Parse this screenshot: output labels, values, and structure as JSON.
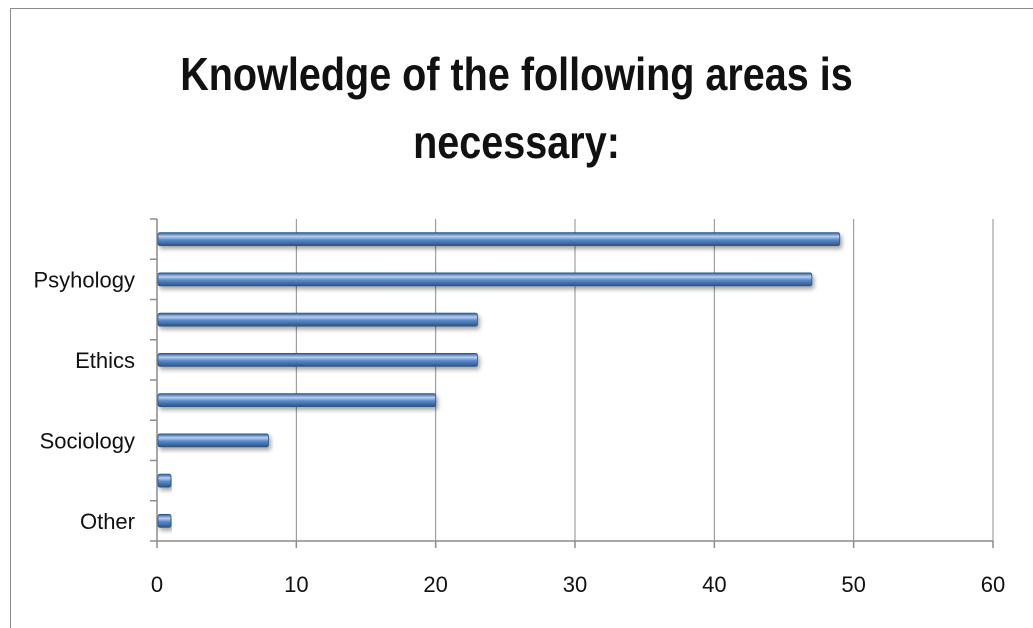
{
  "chart_data": {
    "type": "bar",
    "orientation": "horizontal",
    "title": "Knowledge of the following areas is necessary:",
    "categories": [
      "Other",
      "",
      "Sociology",
      "",
      "Ethics",
      "",
      "Psyhology",
      ""
    ],
    "values": [
      1,
      1,
      8,
      20,
      23,
      23,
      47,
      49
    ],
    "xlim": [
      0,
      60
    ],
    "xticks": [
      0,
      10,
      20,
      30,
      40,
      50,
      60
    ],
    "grid": "vertical",
    "legend": "none",
    "colors": {
      "bar": "#4f81bd",
      "bar_light": "#b9cfee",
      "bar_dark": "#2b5487",
      "grid": "#8c8c8c"
    }
  }
}
